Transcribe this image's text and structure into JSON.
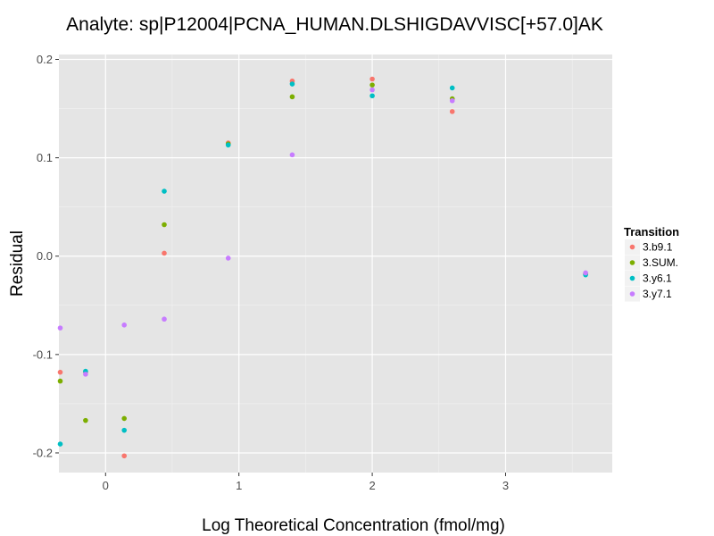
{
  "chart_data": {
    "type": "scatter",
    "title": "Analyte: sp|P12004|PCNA_HUMAN.DLSHIGDAVVISC[+57.0]AK",
    "xlabel": "Log Theoretical Concentration (fmol/mg)",
    "ylabel": "Residual",
    "xlim": [
      -0.35,
      3.8
    ],
    "ylim": [
      -0.22,
      0.205
    ],
    "x_ticks": [
      0,
      1,
      2,
      3
    ],
    "x_tick_labels": [
      "0",
      "1",
      "2",
      "3"
    ],
    "y_ticks": [
      -0.2,
      -0.1,
      0.0,
      0.1,
      0.2
    ],
    "y_tick_labels": [
      "-0.2",
      "-0.1",
      "0.0",
      "0.1",
      "0.2"
    ],
    "grid": true,
    "legend": {
      "title": "Transition",
      "placement": "right"
    },
    "series": [
      {
        "name": "3.b9.1",
        "color": "#F8766D",
        "points": [
          [
            -0.34,
            -0.118
          ],
          [
            -0.15,
            -0.118
          ],
          [
            0.14,
            -0.203
          ],
          [
            0.44,
            0.003
          ],
          [
            0.92,
            0.115
          ],
          [
            1.4,
            0.178
          ],
          [
            2.0,
            0.18
          ],
          [
            2.6,
            0.147
          ],
          [
            3.6,
            -0.018
          ]
        ]
      },
      {
        "name": "3.SUM.",
        "color": "#7CAE00",
        "points": [
          [
            -0.34,
            -0.127
          ],
          [
            -0.15,
            -0.167
          ],
          [
            0.14,
            -0.165
          ],
          [
            0.44,
            0.032
          ],
          [
            0.92,
            0.114
          ],
          [
            1.4,
            0.162
          ],
          [
            2.0,
            0.174
          ],
          [
            2.6,
            0.16
          ],
          [
            3.6,
            -0.018
          ]
        ]
      },
      {
        "name": "3.y6.1",
        "color": "#00BFC4",
        "points": [
          [
            -0.34,
            -0.191
          ],
          [
            -0.15,
            -0.117
          ],
          [
            0.14,
            -0.177
          ],
          [
            0.44,
            0.066
          ],
          [
            0.92,
            0.113
          ],
          [
            1.4,
            0.175
          ],
          [
            2.0,
            0.163
          ],
          [
            2.6,
            0.171
          ],
          [
            3.6,
            -0.019
          ]
        ]
      },
      {
        "name": "3.y7.1",
        "color": "#C77CFF",
        "points": [
          [
            -0.34,
            -0.073
          ],
          [
            -0.15,
            -0.12
          ],
          [
            0.14,
            -0.07
          ],
          [
            0.44,
            -0.064
          ],
          [
            0.92,
            -0.002
          ],
          [
            1.4,
            0.103
          ],
          [
            2.0,
            0.169
          ],
          [
            2.6,
            0.158
          ],
          [
            3.6,
            -0.017
          ]
        ]
      }
    ]
  },
  "colors": {
    "panel_background": "#E5E5E5",
    "grid_major": "#FFFFFF",
    "grid_minor": "#F2F2F2"
  }
}
